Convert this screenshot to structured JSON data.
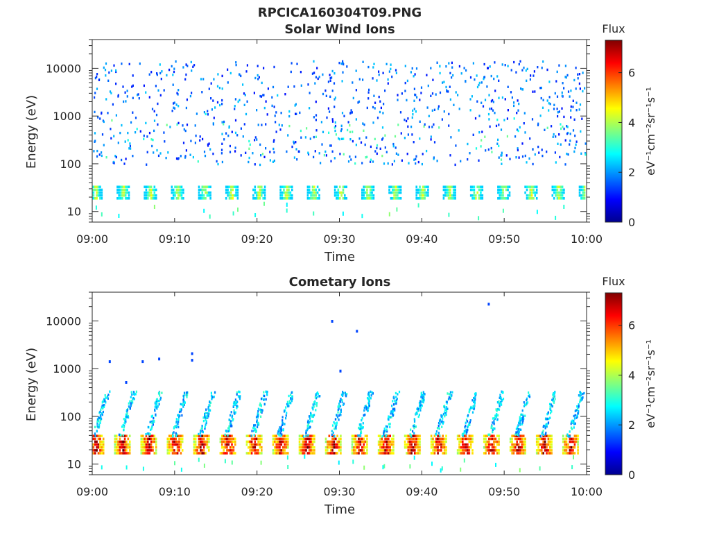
{
  "figure": {
    "title": "RPCICA160304T09.PNG"
  },
  "chart_data": [
    {
      "type": "heatmap",
      "title": "Solar Wind Ions",
      "xlabel": "Time",
      "ylabel": "Energy (eV)",
      "x_range": [
        "09:00",
        "10:00"
      ],
      "x_ticks": [
        "09:00",
        "09:10",
        "09:20",
        "09:30",
        "09:40",
        "09:50",
        "10:00"
      ],
      "y_scale": "log",
      "ylim": [
        6,
        40000
      ],
      "y_ticks": [
        10,
        100,
        1000,
        10000
      ],
      "y_tick_labels": [
        "10",
        "100",
        "1000",
        "10000"
      ],
      "colorbar": {
        "label": "Flux",
        "unit": "eV⁻¹cm⁻²sr⁻¹s⁻¹",
        "range": [
          0,
          7.3
        ],
        "ticks": [
          0,
          2,
          4,
          6
        ],
        "colormap": "jet"
      },
      "description_features": {
        "band_energy_range_eV": [
          20,
          38
        ],
        "band_cycle_minutes": 3.3,
        "scatter_energy_range_eV": [
          100,
          15000
        ],
        "scatter_level": [
          1.0,
          2.4
        ]
      }
    },
    {
      "type": "heatmap",
      "title": "Cometary Ions",
      "xlabel": "Time",
      "ylabel": "Energy (eV)",
      "x_range": [
        "09:00",
        "10:00"
      ],
      "x_ticks": [
        "09:00",
        "09:10",
        "09:20",
        "09:30",
        "09:40",
        "09:50",
        "10:00"
      ],
      "y_scale": "log",
      "ylim": [
        6,
        40000
      ],
      "y_ticks": [
        10,
        100,
        1000,
        10000
      ],
      "y_tick_labels": [
        "10",
        "100",
        "1000",
        "10000"
      ],
      "colorbar": {
        "label": "Flux",
        "unit": "eV⁻¹cm⁻²sr⁻¹s⁻¹",
        "range": [
          0,
          7.3
        ],
        "ticks": [
          0,
          2,
          4,
          6
        ],
        "colormap": "jet"
      },
      "description_features": {
        "band_energy_range_eV": [
          18,
          42
        ],
        "band_cycle_minutes": 3.2,
        "band_peak_level": 6.8,
        "plume_energy_range_eV": [
          40,
          350
        ],
        "scatter_points": [
          {
            "t": "09:02",
            "e": 1500
          },
          {
            "t": "09:04",
            "e": 550
          },
          {
            "t": "09:06",
            "e": 1500
          },
          {
            "t": "09:08",
            "e": 1700
          },
          {
            "t": "09:12",
            "e": 2200
          },
          {
            "t": "09:12",
            "e": 1600
          },
          {
            "t": "09:29",
            "e": 10500
          },
          {
            "t": "09:32",
            "e": 6500
          },
          {
            "t": "09:30",
            "e": 950
          },
          {
            "t": "09:48",
            "e": 24000
          }
        ]
      }
    }
  ]
}
